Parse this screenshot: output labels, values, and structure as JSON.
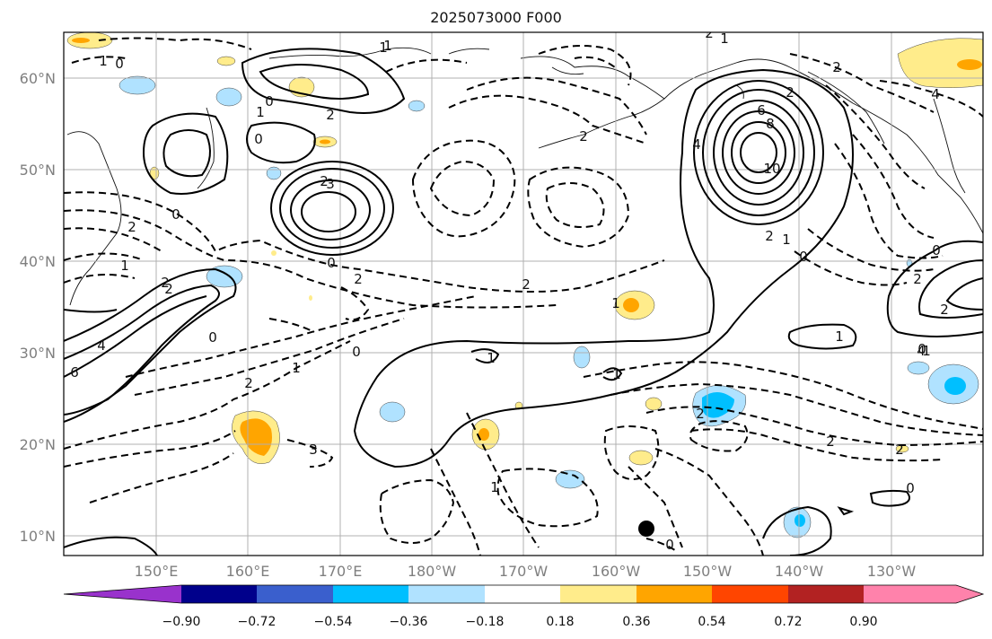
{
  "title": "2025073000 F000",
  "lat_labels": [
    "60°N",
    "50°N",
    "40°N",
    "30°N",
    "20°N",
    "10°N"
  ],
  "lon_labels": [
    "150°E",
    "160°E",
    "170°E",
    "180°W",
    "170°W",
    "160°W",
    "150°W",
    "140°W",
    "130°W"
  ],
  "colorbar": {
    "colors": [
      "#9932cc",
      "#00008b",
      "#3a5fcd",
      "#00bfff",
      "#b0e2ff",
      "#ffffff",
      "#ffec8b",
      "#ffa500",
      "#ff4500",
      "#b22222",
      "#ff82ab"
    ],
    "ticks": [
      "−0.90",
      "−0.72",
      "−0.54",
      "−0.36",
      "−0.18",
      "0.18",
      "0.36",
      "0.54",
      "0.72",
      "0.90"
    ]
  },
  "contour_labels": [
    "0",
    "1",
    "1",
    "2",
    "3",
    "6",
    "8",
    "10",
    "4",
    "2",
    "1",
    "0",
    "1",
    "2",
    "3",
    "4",
    "0",
    "0",
    "2",
    "1",
    "2",
    "1",
    "0",
    "2",
    "4",
    "6",
    "2",
    "1",
    "0",
    "2",
    "2",
    "0",
    "1",
    "2",
    "2",
    "1",
    "1",
    "2",
    "1",
    "0",
    "0",
    "1",
    "2",
    "0",
    "1",
    "0",
    "4",
    "2",
    "2",
    "2",
    "1",
    "0",
    "2",
    "2"
  ]
}
